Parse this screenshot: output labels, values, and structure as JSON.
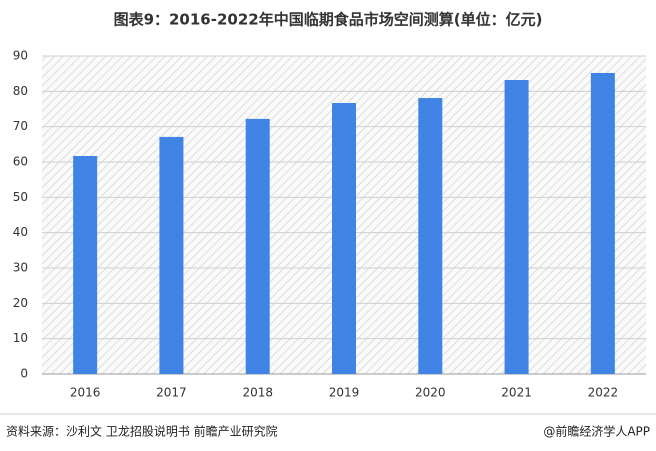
{
  "chart_data": {
    "type": "bar",
    "title": "图表9：2016-2022年中国临期食品市场空间测算(单位：亿元)",
    "categories": [
      "2016",
      "2017",
      "2018",
      "2019",
      "2020",
      "2021",
      "2022"
    ],
    "values": [
      61.7,
      67.1,
      72.2,
      76.7,
      78.1,
      83.2,
      85.2
    ],
    "color": "#3f83e5",
    "ylim": [
      0,
      90
    ],
    "yticks": [
      0,
      10,
      20,
      30,
      40,
      50,
      60,
      70,
      80,
      90
    ],
    "grid": true
  },
  "footer": {
    "source": "资料来源：沙利文 卫龙招股说明书 前瞻产业研究院",
    "credit": "@前瞻经济学人APP"
  }
}
